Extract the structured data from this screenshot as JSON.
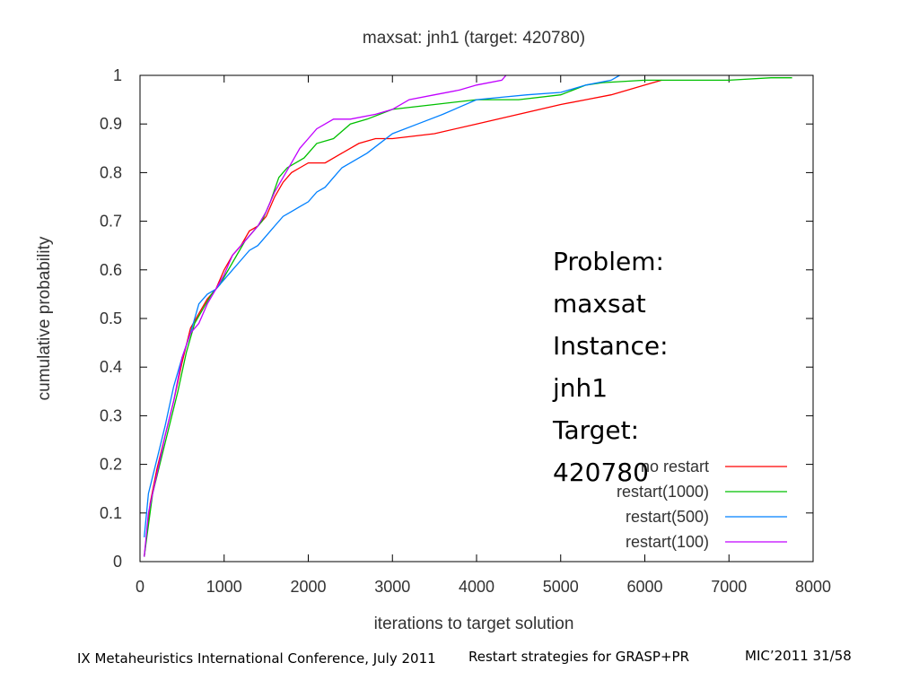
{
  "chart_data": {
    "type": "line",
    "title": "maxsat: jnh1 (target: 420780)",
    "xlabel": "iterations to target solution",
    "ylabel": "cumulative probability",
    "xlim": [
      0,
      8000
    ],
    "ylim": [
      0,
      1
    ],
    "xticks": [
      "0",
      "1000",
      "2000",
      "3000",
      "4000",
      "5000",
      "6000",
      "7000",
      "8000"
    ],
    "yticks": [
      "0",
      "0.1",
      "0.2",
      "0.3",
      "0.4",
      "0.5",
      "0.6",
      "0.7",
      "0.8",
      "0.9",
      "1"
    ],
    "grid": false,
    "legend_position": "bottom-right",
    "series": [
      {
        "name": "no restart",
        "color": "#ff0000",
        "x": [
          50,
          120,
          200,
          300,
          400,
          500,
          600,
          700,
          800,
          900,
          1000,
          1100,
          1200,
          1300,
          1400,
          1500,
          1600,
          1700,
          1800,
          1900,
          2000,
          2200,
          2400,
          2600,
          2800,
          3000,
          3500,
          4000,
          4500,
          5000,
          5300,
          5600,
          5800,
          6000,
          6200
        ],
        "y": [
          0.01,
          0.12,
          0.19,
          0.26,
          0.33,
          0.41,
          0.48,
          0.51,
          0.54,
          0.56,
          0.6,
          0.63,
          0.65,
          0.68,
          0.69,
          0.71,
          0.75,
          0.78,
          0.8,
          0.81,
          0.82,
          0.82,
          0.84,
          0.86,
          0.87,
          0.87,
          0.88,
          0.9,
          0.92,
          0.94,
          0.95,
          0.96,
          0.97,
          0.98,
          0.99
        ]
      },
      {
        "name": "restart(1000)",
        "color": "#00c000",
        "x": [
          50,
          150,
          250,
          350,
          450,
          550,
          650,
          750,
          850,
          950,
          1050,
          1150,
          1250,
          1350,
          1450,
          1550,
          1650,
          1750,
          1850,
          1950,
          2100,
          2300,
          2500,
          2700,
          3000,
          3500,
          4000,
          4500,
          5000,
          5300,
          5500,
          6000,
          6500,
          7000,
          7500,
          7750
        ],
        "y": [
          0.01,
          0.14,
          0.21,
          0.28,
          0.35,
          0.43,
          0.49,
          0.52,
          0.55,
          0.57,
          0.6,
          0.63,
          0.66,
          0.68,
          0.7,
          0.74,
          0.79,
          0.81,
          0.82,
          0.83,
          0.86,
          0.87,
          0.9,
          0.91,
          0.93,
          0.94,
          0.95,
          0.95,
          0.96,
          0.98,
          0.985,
          0.99,
          0.99,
          0.99,
          0.995,
          0.995
        ]
      },
      {
        "name": "restart(500)",
        "color": "#0080ff",
        "x": [
          50,
          100,
          200,
          300,
          400,
          500,
          600,
          700,
          800,
          900,
          1000,
          1100,
          1200,
          1300,
          1400,
          1500,
          1600,
          1700,
          1800,
          1900,
          2000,
          2100,
          2200,
          2300,
          2400,
          2500,
          2700,
          3000,
          3300,
          3600,
          4000,
          4300,
          4600,
          5000,
          5300,
          5600,
          5700
        ],
        "y": [
          0.05,
          0.14,
          0.21,
          0.28,
          0.36,
          0.42,
          0.47,
          0.53,
          0.55,
          0.56,
          0.58,
          0.6,
          0.62,
          0.64,
          0.65,
          0.67,
          0.69,
          0.71,
          0.72,
          0.73,
          0.74,
          0.76,
          0.77,
          0.79,
          0.81,
          0.82,
          0.84,
          0.88,
          0.9,
          0.92,
          0.95,
          0.955,
          0.96,
          0.965,
          0.98,
          0.99,
          1.0
        ]
      },
      {
        "name": "restart(100)",
        "color": "#c000ff",
        "x": [
          50,
          100,
          200,
          300,
          400,
          500,
          600,
          700,
          800,
          900,
          1000,
          1100,
          1200,
          1300,
          1400,
          1500,
          1600,
          1700,
          1800,
          1900,
          2000,
          2100,
          2300,
          2500,
          2800,
          3000,
          3200,
          3500,
          3800,
          4000,
          4300,
          4350
        ],
        "y": [
          0.01,
          0.1,
          0.18,
          0.26,
          0.33,
          0.42,
          0.47,
          0.49,
          0.53,
          0.56,
          0.59,
          0.63,
          0.65,
          0.67,
          0.69,
          0.72,
          0.76,
          0.79,
          0.82,
          0.85,
          0.87,
          0.89,
          0.91,
          0.91,
          0.92,
          0.93,
          0.95,
          0.96,
          0.97,
          0.98,
          0.99,
          1.0
        ]
      }
    ]
  },
  "annotation": {
    "lines": [
      "Problem:",
      "maxsat",
      "Instance:",
      "jnh1",
      "Target:",
      "420780"
    ]
  },
  "footer": {
    "left": "IX Metaheuristics International Conference, July 2011",
    "center": "Restart strategies for GRASP+PR",
    "right": "MIC’2011 31/58"
  }
}
